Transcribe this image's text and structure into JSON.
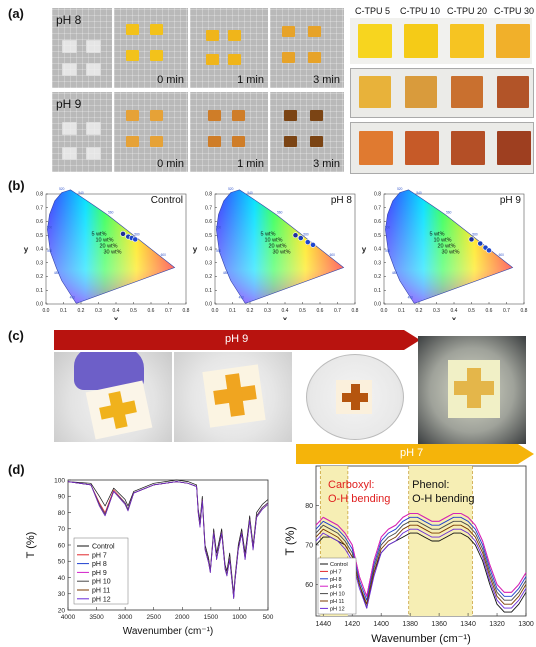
{
  "panel_a": {
    "label": "(a)",
    "row1_ph": "pH 8",
    "row2_ph": "pH 9",
    "times": [
      "0 min",
      "1 min",
      "3 min"
    ],
    "ctpu_labels": [
      "C-TPU 5",
      "C-TPU 10",
      "C-TPU 20",
      "C-TPU 30"
    ],
    "colors": {
      "row1": [
        "#f3c21a",
        "#f0b51a",
        "#e7a329"
      ],
      "row2": [
        "#e6a237",
        "#cf7d28",
        "#7b4414"
      ],
      "ctpu_top": [
        "#f7d51f",
        "#f5cb17",
        "#f6c422",
        "#f1b02a"
      ],
      "ctpu_mid": [
        "#e8b23a",
        "#d99b3c",
        "#c9702f",
        "#b25428"
      ],
      "ctpu_bot": [
        "#e07a30",
        "#c65a28",
        "#b44f26",
        "#9e3f20"
      ]
    }
  },
  "panel_b": {
    "label": "(b)",
    "titles": [
      "Control",
      "pH 8",
      "pH 9"
    ],
    "xlabel": "x",
    "ylabel": "y",
    "series_labels": [
      "5 wt%",
      "10 wt%",
      "20 wt%",
      "30 wt%"
    ],
    "x_ticks": [
      "0.0",
      "0.1",
      "0.2",
      "0.3",
      "0.4",
      "0.5",
      "0.6",
      "0.7",
      "0.8"
    ],
    "y_ticks": [
      "0.0",
      "0.1",
      "0.2",
      "0.3",
      "0.4",
      "0.5",
      "0.6",
      "0.7",
      "0.8"
    ],
    "wavelength_labels": [
      "520",
      "540",
      "560",
      "580",
      "600",
      "500",
      "490",
      "480",
      "460"
    ]
  },
  "panel_c": {
    "label": "(c)",
    "arrow1_label": "pH 9",
    "arrow2_label": "pH 7",
    "colors": {
      "arrow1": "#b8130f",
      "arrow2": "#f5b40a"
    }
  },
  "panel_d": {
    "label": "(d)",
    "left_chart": {
      "xlabel": "Wavenumber (cm⁻¹)",
      "ylabel": "T (%)",
      "x_ticks": [
        "4000",
        "3500",
        "3000",
        "2500",
        "2000",
        "1500",
        "1000",
        "500"
      ],
      "y_ticks": [
        "20",
        "30",
        "40",
        "50",
        "60",
        "70",
        "80",
        "90",
        "100"
      ],
      "legend": [
        "Control",
        "pH 7",
        "pH 8",
        "pH 9",
        "pH 10",
        "pH 11",
        "pH 12"
      ]
    },
    "right_chart": {
      "xlabel": "Wavenumber (cm⁻¹)",
      "ylabel": "T (%)",
      "x_ticks": [
        "1440",
        "1420",
        "1400",
        "1380",
        "1360",
        "1340",
        "1320",
        "1300"
      ],
      "y_ticks": [
        "60",
        "70",
        "80"
      ],
      "legend": [
        "Control",
        "pH 7",
        "pH 8",
        "pH 9",
        "pH 10",
        "pH 11",
        "pH 12"
      ],
      "annotation1_line1": "Carboxyl:",
      "annotation1_line2": "O-H bending",
      "annotation2_line1": "Phenol:",
      "annotation2_line2": "O-H bending"
    },
    "series_colors": [
      "#111111",
      "#e0262b",
      "#1d3fcf",
      "#d31fc8",
      "#4a4a4a",
      "#7a3a00",
      "#6a2bd8"
    ]
  },
  "chart_data": [
    {
      "type": "scatter",
      "title": "Control",
      "xlabel": "x",
      "ylabel": "y",
      "xlim": [
        0.0,
        0.8
      ],
      "ylim": [
        0.0,
        0.8
      ],
      "series": [
        {
          "name": "5 wt%",
          "x": [
            0.44
          ],
          "y": [
            0.51
          ]
        },
        {
          "name": "10 wt%",
          "x": [
            0.47
          ],
          "y": [
            0.49
          ]
        },
        {
          "name": "20 wt%",
          "x": [
            0.49
          ],
          "y": [
            0.48
          ]
        },
        {
          "name": "30 wt%",
          "x": [
            0.51
          ],
          "y": [
            0.47
          ]
        }
      ]
    },
    {
      "type": "scatter",
      "title": "pH 8",
      "xlabel": "x",
      "ylabel": "y",
      "xlim": [
        0.0,
        0.8
      ],
      "ylim": [
        0.0,
        0.8
      ],
      "series": [
        {
          "name": "5 wt%",
          "x": [
            0.46
          ],
          "y": [
            0.5
          ]
        },
        {
          "name": "10 wt%",
          "x": [
            0.49
          ],
          "y": [
            0.48
          ]
        },
        {
          "name": "20 wt%",
          "x": [
            0.53
          ],
          "y": [
            0.45
          ]
        },
        {
          "name": "30 wt%",
          "x": [
            0.56
          ],
          "y": [
            0.43
          ]
        }
      ]
    },
    {
      "type": "scatter",
      "title": "pH 9",
      "xlabel": "x",
      "ylabel": "y",
      "xlim": [
        0.0,
        0.8
      ],
      "ylim": [
        0.0,
        0.8
      ],
      "series": [
        {
          "name": "5 wt%",
          "x": [
            0.5
          ],
          "y": [
            0.47
          ]
        },
        {
          "name": "10 wt%",
          "x": [
            0.55
          ],
          "y": [
            0.44
          ]
        },
        {
          "name": "20 wt%",
          "x": [
            0.58
          ],
          "y": [
            0.41
          ]
        },
        {
          "name": "30 wt%",
          "x": [
            0.6
          ],
          "y": [
            0.39
          ]
        }
      ]
    },
    {
      "type": "line",
      "xlabel": "Wavenumber (cm⁻¹)",
      "ylabel": "T (%)",
      "xlim": [
        4000,
        500
      ],
      "ylim": [
        20,
        100
      ],
      "x": [
        4000,
        3600,
        3450,
        3350,
        3200,
        3000,
        2950,
        2850,
        2500,
        2100,
        1900,
        1750,
        1720,
        1690,
        1650,
        1600,
        1540,
        1510,
        1450,
        1400,
        1310,
        1250,
        1220,
        1170,
        1100,
        1080,
        1020,
        960,
        900,
        820,
        760,
        700,
        600,
        500
      ],
      "series": [
        {
          "name": "Control",
          "values": [
            99,
            98,
            90,
            84,
            95,
            88,
            84,
            93,
            98,
            100,
            99,
            97,
            82,
            75,
            90,
            60,
            52,
            45,
            70,
            55,
            70,
            48,
            44,
            55,
            30,
            40,
            60,
            70,
            55,
            78,
            60,
            80,
            85,
            88
          ]
        },
        {
          "name": "pH 7",
          "values": [
            99,
            97,
            86,
            80,
            94,
            86,
            82,
            92,
            97,
            99,
            98,
            96,
            80,
            72,
            88,
            58,
            50,
            44,
            68,
            52,
            68,
            46,
            42,
            52,
            28,
            38,
            58,
            68,
            52,
            76,
            58,
            78,
            83,
            86
          ]
        },
        {
          "name": "pH 8",
          "values": [
            99,
            97,
            85,
            79,
            93,
            86,
            82,
            92,
            97,
            99,
            98,
            96,
            80,
            72,
            88,
            58,
            50,
            44,
            68,
            52,
            68,
            46,
            42,
            52,
            28,
            38,
            58,
            68,
            52,
            76,
            58,
            78,
            83,
            86
          ]
        },
        {
          "name": "pH 9",
          "values": [
            99,
            97,
            85,
            79,
            93,
            86,
            82,
            92,
            97,
            99,
            98,
            96,
            80,
            72,
            88,
            58,
            50,
            44,
            68,
            52,
            68,
            46,
            42,
            52,
            28,
            38,
            58,
            68,
            52,
            76,
            58,
            78,
            83,
            86
          ]
        },
        {
          "name": "pH 10",
          "values": [
            99,
            97,
            85,
            79,
            93,
            86,
            82,
            92,
            97,
            99,
            98,
            96,
            80,
            72,
            88,
            58,
            50,
            44,
            68,
            52,
            68,
            46,
            42,
            52,
            28,
            38,
            58,
            68,
            52,
            76,
            58,
            78,
            83,
            86
          ]
        },
        {
          "name": "pH 11",
          "values": [
            99,
            97,
            84,
            78,
            93,
            85,
            81,
            92,
            97,
            99,
            98,
            96,
            79,
            71,
            87,
            57,
            49,
            43,
            67,
            51,
            67,
            45,
            41,
            51,
            27,
            37,
            57,
            67,
            51,
            75,
            57,
            77,
            82,
            85
          ]
        },
        {
          "name": "pH 12",
          "values": [
            99,
            97,
            84,
            78,
            93,
            85,
            81,
            92,
            97,
            99,
            98,
            96,
            79,
            71,
            87,
            57,
            49,
            43,
            67,
            51,
            67,
            45,
            41,
            51,
            27,
            37,
            57,
            67,
            51,
            75,
            57,
            77,
            82,
            85
          ]
        }
      ]
    },
    {
      "type": "line",
      "xlabel": "Wavenumber (cm⁻¹)",
      "ylabel": "T (%)",
      "xlim": [
        1445,
        1300
      ],
      "ylim": [
        52,
        90
      ],
      "x": [
        1445,
        1440,
        1435,
        1430,
        1425,
        1420,
        1415,
        1410,
        1405,
        1400,
        1395,
        1390,
        1385,
        1380,
        1375,
        1370,
        1365,
        1360,
        1355,
        1350,
        1345,
        1340,
        1335,
        1330,
        1325,
        1320,
        1315,
        1310,
        1305,
        1300
      ],
      "series": [
        {
          "name": "Control",
          "values": [
            70,
            72,
            72,
            71,
            70,
            67,
            60,
            54,
            63,
            68,
            70,
            71,
            72,
            73,
            73,
            72,
            71,
            71,
            72,
            73,
            73,
            72,
            70,
            66,
            60,
            55,
            53,
            53,
            55,
            58
          ]
        },
        {
          "name": "pH 7",
          "values": [
            75,
            77,
            76,
            75,
            73,
            70,
            62,
            57,
            66,
            72,
            74,
            75,
            77,
            78,
            78,
            77,
            76,
            76,
            77,
            78,
            78,
            77,
            75,
            71,
            65,
            60,
            58,
            58,
            60,
            63
          ]
        },
        {
          "name": "pH 8",
          "values": [
            74,
            76,
            75,
            74,
            72,
            69,
            61,
            56,
            65,
            71,
            73,
            74,
            76,
            77,
            77,
            76,
            75,
            75,
            76,
            77,
            77,
            76,
            74,
            70,
            64,
            59,
            57,
            57,
            59,
            62
          ]
        },
        {
          "name": "pH 9",
          "values": [
            75,
            77,
            76,
            75,
            73,
            70,
            62,
            57,
            66,
            72,
            74,
            75,
            77,
            78,
            78,
            77,
            76,
            76,
            77,
            78,
            78,
            77,
            75,
            71,
            65,
            60,
            58,
            58,
            60,
            63
          ]
        },
        {
          "name": "pH 10",
          "values": [
            73,
            75,
            74,
            73,
            71,
            68,
            60,
            55,
            64,
            70,
            72,
            73,
            75,
            76,
            76,
            75,
            74,
            74,
            75,
            76,
            76,
            75,
            73,
            69,
            63,
            58,
            56,
            56,
            58,
            61
          ]
        },
        {
          "name": "pH 11",
          "values": [
            72,
            74,
            73,
            72,
            70,
            67,
            60,
            55,
            63,
            69,
            71,
            72,
            74,
            75,
            75,
            74,
            73,
            73,
            74,
            75,
            75,
            74,
            72,
            68,
            62,
            57,
            55,
            55,
            57,
            60
          ]
        },
        {
          "name": "pH 12",
          "values": [
            71,
            73,
            72,
            71,
            69,
            66,
            59,
            54,
            62,
            68,
            70,
            71,
            73,
            74,
            74,
            73,
            72,
            72,
            73,
            74,
            74,
            73,
            71,
            67,
            61,
            56,
            54,
            54,
            56,
            59
          ]
        }
      ]
    }
  ]
}
